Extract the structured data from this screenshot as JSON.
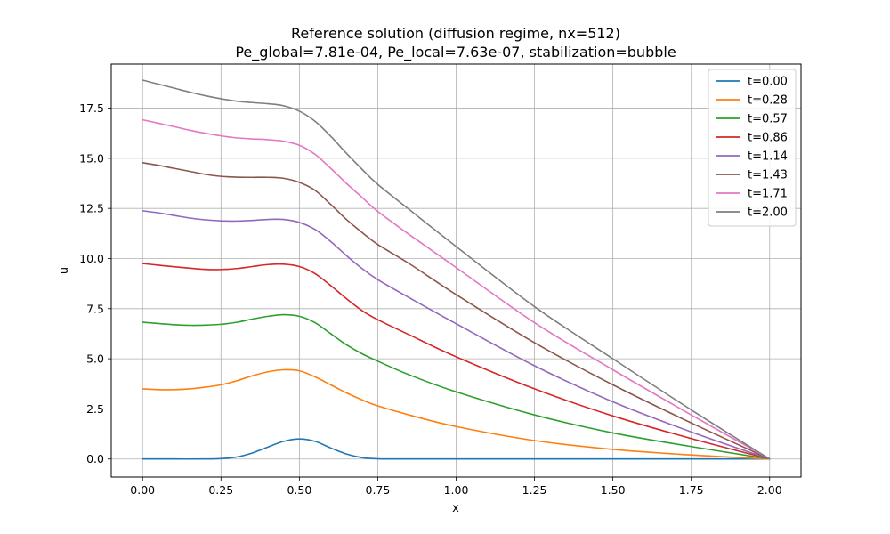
{
  "chart_data": {
    "type": "line",
    "title_line1": "Reference solution (diffusion regime, nx=512)",
    "title_line2": "Pe_global=7.81e-04, Pe_local=7.63e-07, stabilization=bubble",
    "xlabel": "x",
    "ylabel": "u",
    "xlim": [
      -0.1,
      2.1
    ],
    "ylim": [
      -0.9,
      19.7
    ],
    "x_ticks": [
      0.0,
      0.25,
      0.5,
      0.75,
      1.0,
      1.25,
      1.5,
      1.75,
      2.0
    ],
    "x_tick_labels": [
      "0.00",
      "0.25",
      "0.50",
      "0.75",
      "1.00",
      "1.25",
      "1.50",
      "1.75",
      "2.00"
    ],
    "y_ticks": [
      0.0,
      2.5,
      5.0,
      7.5,
      10.0,
      12.5,
      15.0,
      17.5
    ],
    "y_tick_labels": [
      "0.0",
      "2.5",
      "5.0",
      "7.5",
      "10.0",
      "12.5",
      "15.0",
      "17.5"
    ],
    "grid": true,
    "legend_position": "top-right",
    "series": [
      {
        "name": "t=0.00",
        "color": "#1f77b4",
        "points": [
          [
            0.0,
            0.0
          ],
          [
            0.1,
            0.0
          ],
          [
            0.2,
            0.0
          ],
          [
            0.25,
            0.02
          ],
          [
            0.3,
            0.1
          ],
          [
            0.35,
            0.3
          ],
          [
            0.4,
            0.6
          ],
          [
            0.45,
            0.88
          ],
          [
            0.5,
            1.0
          ],
          [
            0.55,
            0.88
          ],
          [
            0.6,
            0.55
          ],
          [
            0.65,
            0.25
          ],
          [
            0.7,
            0.07
          ],
          [
            0.75,
            0.01
          ],
          [
            0.8,
            0.0
          ],
          [
            1.0,
            0.0
          ],
          [
            1.5,
            0.0
          ],
          [
            2.0,
            0.0
          ]
        ]
      },
      {
        "name": "t=0.28",
        "color": "#ff7f0e",
        "points": [
          [
            0.0,
            3.5
          ],
          [
            0.05,
            3.46
          ],
          [
            0.1,
            3.46
          ],
          [
            0.15,
            3.5
          ],
          [
            0.2,
            3.58
          ],
          [
            0.25,
            3.7
          ],
          [
            0.3,
            3.9
          ],
          [
            0.35,
            4.15
          ],
          [
            0.4,
            4.35
          ],
          [
            0.45,
            4.45
          ],
          [
            0.5,
            4.4
          ],
          [
            0.55,
            4.1
          ],
          [
            0.6,
            3.7
          ],
          [
            0.65,
            3.3
          ],
          [
            0.7,
            2.95
          ],
          [
            0.75,
            2.65
          ],
          [
            0.85,
            2.2
          ],
          [
            1.0,
            1.62
          ],
          [
            1.25,
            0.92
          ],
          [
            1.5,
            0.48
          ],
          [
            1.75,
            0.2
          ],
          [
            2.0,
            0.0
          ]
        ]
      },
      {
        "name": "t=0.57",
        "color": "#2ca02c",
        "points": [
          [
            0.0,
            6.82
          ],
          [
            0.05,
            6.76
          ],
          [
            0.1,
            6.7
          ],
          [
            0.15,
            6.67
          ],
          [
            0.2,
            6.68
          ],
          [
            0.25,
            6.72
          ],
          [
            0.3,
            6.82
          ],
          [
            0.35,
            6.98
          ],
          [
            0.4,
            7.12
          ],
          [
            0.45,
            7.2
          ],
          [
            0.5,
            7.12
          ],
          [
            0.55,
            6.8
          ],
          [
            0.6,
            6.25
          ],
          [
            0.65,
            5.7
          ],
          [
            0.7,
            5.25
          ],
          [
            0.75,
            4.88
          ],
          [
            0.85,
            4.2
          ],
          [
            1.0,
            3.35
          ],
          [
            1.25,
            2.2
          ],
          [
            1.5,
            1.3
          ],
          [
            1.75,
            0.62
          ],
          [
            2.0,
            0.0
          ]
        ]
      },
      {
        "name": "t=0.86",
        "color": "#d62728",
        "points": [
          [
            0.0,
            9.75
          ],
          [
            0.05,
            9.67
          ],
          [
            0.1,
            9.59
          ],
          [
            0.15,
            9.52
          ],
          [
            0.2,
            9.46
          ],
          [
            0.25,
            9.45
          ],
          [
            0.3,
            9.5
          ],
          [
            0.35,
            9.6
          ],
          [
            0.4,
            9.7
          ],
          [
            0.45,
            9.72
          ],
          [
            0.5,
            9.6
          ],
          [
            0.55,
            9.25
          ],
          [
            0.6,
            8.65
          ],
          [
            0.65,
            8.0
          ],
          [
            0.7,
            7.4
          ],
          [
            0.75,
            6.95
          ],
          [
            0.85,
            6.2
          ],
          [
            1.0,
            5.1
          ],
          [
            1.25,
            3.5
          ],
          [
            1.5,
            2.15
          ],
          [
            1.75,
            1.02
          ],
          [
            2.0,
            0.0
          ]
        ]
      },
      {
        "name": "t=1.14",
        "color": "#9467bd",
        "points": [
          [
            0.0,
            12.38
          ],
          [
            0.05,
            12.28
          ],
          [
            0.1,
            12.15
          ],
          [
            0.15,
            12.02
          ],
          [
            0.2,
            11.93
          ],
          [
            0.25,
            11.88
          ],
          [
            0.3,
            11.87
          ],
          [
            0.35,
            11.9
          ],
          [
            0.4,
            11.95
          ],
          [
            0.45,
            11.95
          ],
          [
            0.5,
            11.8
          ],
          [
            0.55,
            11.45
          ],
          [
            0.6,
            10.85
          ],
          [
            0.65,
            10.15
          ],
          [
            0.7,
            9.5
          ],
          [
            0.75,
            8.95
          ],
          [
            0.85,
            8.05
          ],
          [
            1.0,
            6.75
          ],
          [
            1.25,
            4.65
          ],
          [
            1.5,
            2.85
          ],
          [
            1.75,
            1.35
          ],
          [
            2.0,
            0.0
          ]
        ]
      },
      {
        "name": "t=1.43",
        "color": "#8c564b",
        "points": [
          [
            0.0,
            14.78
          ],
          [
            0.05,
            14.65
          ],
          [
            0.1,
            14.5
          ],
          [
            0.15,
            14.35
          ],
          [
            0.2,
            14.2
          ],
          [
            0.25,
            14.1
          ],
          [
            0.3,
            14.06
          ],
          [
            0.35,
            14.05
          ],
          [
            0.4,
            14.05
          ],
          [
            0.45,
            14.0
          ],
          [
            0.5,
            13.8
          ],
          [
            0.55,
            13.4
          ],
          [
            0.6,
            12.7
          ],
          [
            0.65,
            11.95
          ],
          [
            0.7,
            11.3
          ],
          [
            0.75,
            10.7
          ],
          [
            0.85,
            9.75
          ],
          [
            1.0,
            8.2
          ],
          [
            1.25,
            5.8
          ],
          [
            1.5,
            3.7
          ],
          [
            1.75,
            1.8
          ],
          [
            2.0,
            0.0
          ]
        ]
      },
      {
        "name": "t=1.71",
        "color": "#e377c2",
        "points": [
          [
            0.0,
            16.92
          ],
          [
            0.05,
            16.75
          ],
          [
            0.1,
            16.58
          ],
          [
            0.15,
            16.4
          ],
          [
            0.2,
            16.25
          ],
          [
            0.25,
            16.12
          ],
          [
            0.3,
            16.02
          ],
          [
            0.35,
            15.97
          ],
          [
            0.4,
            15.93
          ],
          [
            0.45,
            15.85
          ],
          [
            0.5,
            15.65
          ],
          [
            0.55,
            15.2
          ],
          [
            0.6,
            14.5
          ],
          [
            0.65,
            13.75
          ],
          [
            0.7,
            13.05
          ],
          [
            0.75,
            12.35
          ],
          [
            0.85,
            11.2
          ],
          [
            1.0,
            9.55
          ],
          [
            1.25,
            6.8
          ],
          [
            1.5,
            4.45
          ],
          [
            1.75,
            2.2
          ],
          [
            2.0,
            0.0
          ]
        ]
      },
      {
        "name": "t=2.00",
        "color": "#7f7f7f",
        "points": [
          [
            0.0,
            18.9
          ],
          [
            0.05,
            18.7
          ],
          [
            0.1,
            18.5
          ],
          [
            0.15,
            18.3
          ],
          [
            0.2,
            18.12
          ],
          [
            0.25,
            17.97
          ],
          [
            0.3,
            17.85
          ],
          [
            0.35,
            17.78
          ],
          [
            0.4,
            17.72
          ],
          [
            0.45,
            17.62
          ],
          [
            0.5,
            17.35
          ],
          [
            0.55,
            16.85
          ],
          [
            0.6,
            16.1
          ],
          [
            0.65,
            15.25
          ],
          [
            0.7,
            14.45
          ],
          [
            0.75,
            13.7
          ],
          [
            0.85,
            12.45
          ],
          [
            1.0,
            10.6
          ],
          [
            1.25,
            7.6
          ],
          [
            1.5,
            5.0
          ],
          [
            1.75,
            2.45
          ],
          [
            2.0,
            0.0
          ]
        ]
      }
    ]
  }
}
